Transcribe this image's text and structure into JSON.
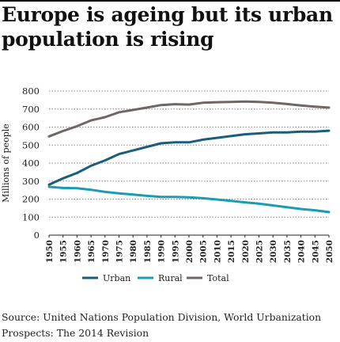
{
  "title": "Europe is ageing but its urban population is rising",
  "source": "Source: United Nations Population Division, World Urbanization Prospects: The 2014 Revision",
  "chart_data": {
    "type": "line",
    "title": "Europe is ageing but its urban population is rising",
    "xlabel": "",
    "ylabel": "Millions of people",
    "x": [
      1950,
      1955,
      1960,
      1965,
      1970,
      1975,
      1980,
      1985,
      1990,
      1995,
      2000,
      2005,
      2010,
      2015,
      2020,
      2025,
      2030,
      2035,
      2040,
      2045,
      2050
    ],
    "ylim": [
      0,
      800
    ],
    "yticks": [
      0,
      100,
      200,
      300,
      400,
      500,
      600,
      700,
      800
    ],
    "grid": true,
    "legend": "bottom",
    "series": [
      {
        "name": "Urban",
        "color": "#1a5f7a",
        "values": [
          280,
          315,
          345,
          385,
          415,
          450,
          470,
          490,
          510,
          515,
          515,
          530,
          540,
          550,
          560,
          565,
          570,
          570,
          575,
          575,
          580
        ]
      },
      {
        "name": "Rural",
        "color": "#1a9cb5",
        "values": [
          268,
          262,
          260,
          252,
          240,
          232,
          225,
          218,
          212,
          212,
          210,
          205,
          198,
          190,
          182,
          175,
          165,
          155,
          145,
          138,
          128
        ]
      },
      {
        "name": "Total",
        "color": "#6e6764",
        "values": [
          548,
          578,
          605,
          637,
          655,
          682,
          695,
          708,
          722,
          727,
          725,
          735,
          738,
          740,
          742,
          740,
          735,
          728,
          720,
          713,
          708
        ]
      }
    ]
  }
}
